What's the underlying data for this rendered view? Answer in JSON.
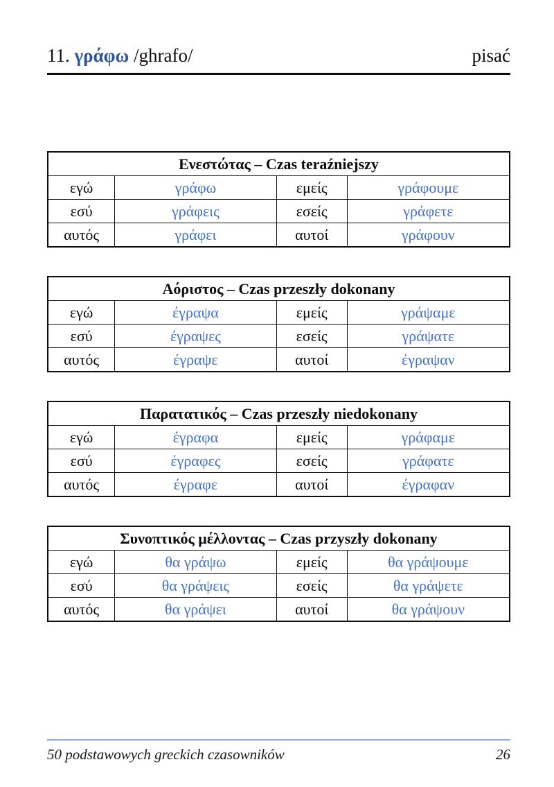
{
  "page": {
    "header": {
      "number": "11.",
      "verb": "γράφω",
      "transliteration": "/ghrafo/",
      "translation": "pisać"
    },
    "footer": {
      "book_title": "50 podstawowych greckich czasowników",
      "page_number": "26"
    },
    "colors": {
      "verb_blue": "#4472C4",
      "title_blue": "#2F5496",
      "footer_line_blue": "#8FAADC"
    }
  },
  "tables": [
    {
      "title": "Ενεστώτας – Czas teraźniejszy",
      "rows": [
        [
          "εγώ",
          "γράφω",
          "εμείς",
          "γράφουμε"
        ],
        [
          "εσύ",
          "γράφεις",
          "εσείς",
          "γράφετε"
        ],
        [
          "αυτός",
          "γράφει",
          "αυτοί",
          "γράφουν"
        ]
      ]
    },
    {
      "title": "Αόριστος – Czas przeszły dokonany",
      "rows": [
        [
          "εγώ",
          "έγραψα",
          "εμείς",
          "γράψαμε"
        ],
        [
          "εσύ",
          "έγραψες",
          "εσείς",
          "γράψατε"
        ],
        [
          "αυτός",
          "έγραψε",
          "αυτοί",
          "έγραψαν"
        ]
      ]
    },
    {
      "title": "Παρατατικός – Czas przeszły niedokonany",
      "rows": [
        [
          "εγώ",
          "έγραφα",
          "εμείς",
          "γράφαμε"
        ],
        [
          "εσύ",
          "έγραφες",
          "εσείς",
          "γράφατε"
        ],
        [
          "αυτός",
          "έγραφε",
          "αυτοί",
          "έγραφαν"
        ]
      ]
    },
    {
      "title": "Συνοπτικός μέλλοντας – Czas przyszły dokonany",
      "rows": [
        [
          "εγώ",
          "θα γράψω",
          "εμείς",
          "θα γράψουμε"
        ],
        [
          "εσύ",
          "θα γράψεις",
          "εσείς",
          "θα γράψετε"
        ],
        [
          "αυτός",
          "θα γράψει",
          "αυτοί",
          "θα γράψουν"
        ]
      ]
    }
  ]
}
